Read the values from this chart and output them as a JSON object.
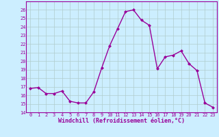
{
  "x": [
    0,
    1,
    2,
    3,
    4,
    5,
    6,
    7,
    8,
    9,
    10,
    11,
    12,
    13,
    14,
    15,
    16,
    17,
    18,
    19,
    20,
    21,
    22,
    23
  ],
  "y": [
    16.8,
    16.9,
    16.2,
    16.2,
    16.5,
    15.3,
    15.1,
    15.1,
    16.4,
    19.2,
    21.8,
    23.8,
    25.8,
    26.0,
    24.8,
    24.2,
    19.1,
    20.5,
    20.7,
    21.2,
    19.7,
    18.9,
    15.1,
    14.6
  ],
  "line_color": "#990099",
  "marker": "D",
  "marker_size": 2.0,
  "bg_color": "#cceeff",
  "grid_color": "#b0cccc",
  "xlabel": "Windchill (Refroidissement éolien,°C)",
  "xlabel_color": "#990099",
  "tick_color": "#990099",
  "ylim": [
    14,
    27
  ],
  "xlim": [
    -0.5,
    23.5
  ],
  "yticks": [
    14,
    15,
    16,
    17,
    18,
    19,
    20,
    21,
    22,
    23,
    24,
    25,
    26
  ],
  "xticks": [
    0,
    1,
    2,
    3,
    4,
    5,
    6,
    7,
    8,
    9,
    10,
    11,
    12,
    13,
    14,
    15,
    16,
    17,
    18,
    19,
    20,
    21,
    22,
    23
  ],
  "line_width": 1.0,
  "font_family": "monospace"
}
